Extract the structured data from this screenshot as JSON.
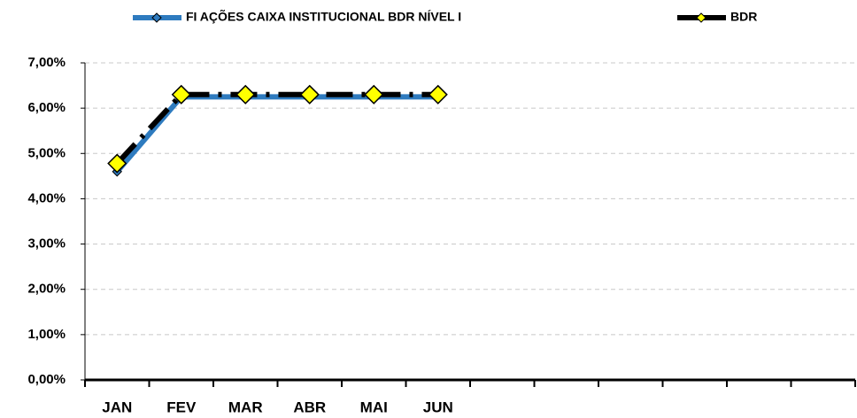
{
  "chart_data": {
    "type": "line",
    "categories": [
      "JAN",
      "FEV",
      "MAR",
      "ABR",
      "MAI",
      "JUN",
      null,
      null,
      null,
      null,
      null,
      null
    ],
    "series": [
      {
        "name": "FI AÇÕES CAIXA INSTITUCIONAL BDR NÍVEL I",
        "color": "#2e7bbf",
        "marker_color": "#2e7bbf",
        "values": [
          4.6,
          6.25,
          6.25,
          6.25,
          6.25,
          6.25,
          null,
          null,
          null,
          null,
          null,
          null
        ]
      },
      {
        "name": "BDR",
        "color": "#000000",
        "marker_color": "#ffff00",
        "values": [
          4.78,
          6.3,
          6.3,
          6.3,
          6.3,
          6.3,
          null,
          null,
          null,
          null,
          null,
          null
        ]
      }
    ],
    "ylim": [
      0,
      7
    ],
    "yticks": [
      {
        "value": 0,
        "label": "0,00%"
      },
      {
        "value": 1,
        "label": "1,00%"
      },
      {
        "value": 2,
        "label": "2,00%"
      },
      {
        "value": 3,
        "label": "3,00%"
      },
      {
        "value": 4,
        "label": "4,00%"
      },
      {
        "value": 5,
        "label": "5,00%"
      },
      {
        "value": 6,
        "label": "6,00%"
      },
      {
        "value": 7,
        "label": "7,00%"
      }
    ],
    "grid": true
  }
}
